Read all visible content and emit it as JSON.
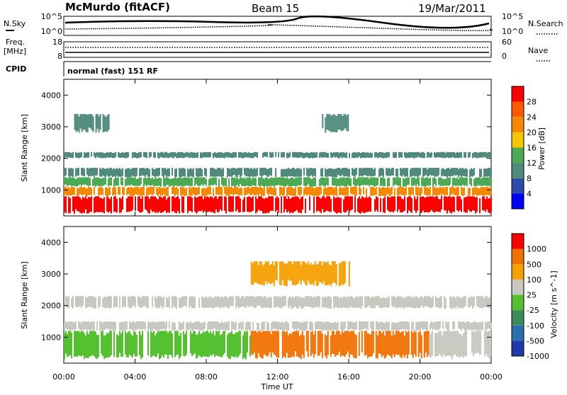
{
  "header": {
    "station": "McMurdo (fitACF)",
    "beam": "Beam 15",
    "date": "19/Mar/2011"
  },
  "aux_panels": {
    "nsky_label": "N.Sky",
    "nsearch_label": "N.Search",
    "freq_label_line1": "Freq.",
    "freq_label_line2": "[MHz]",
    "nave_label": "Nave",
    "cpid_label": "CPID",
    "cpid_value": "normal (fast) 151 RF",
    "left_ticks_noise": [
      "10^5",
      "10^0"
    ],
    "right_ticks_noise": [
      "10^5",
      "10^0"
    ],
    "left_ticks_freq": [
      "18",
      "8"
    ],
    "right_ticks_nave": [
      "60",
      "0"
    ]
  },
  "colors": {
    "power": [
      "#0000ff",
      "#2a4ea8",
      "#4f8a7a",
      "#4caa55",
      "#f5c500",
      "#f58a00",
      "#ff5a00",
      "#ff0000"
    ],
    "velocity": [
      "#1f3aa8",
      "#2c6db0",
      "#3a8a5a",
      "#55c030",
      "#c8c8c0",
      "#f5a000",
      "#f07000",
      "#ff0000"
    ],
    "frame": "#000000"
  },
  "chart_data": [
    {
      "type": "heatmap",
      "name": "power",
      "x_values_ut": [
        "00:00",
        "04:00",
        "08:00",
        "12:00",
        "16:00",
        "20:00",
        "00:00"
      ],
      "ylabel": "Slant Range [km]",
      "yticks": [
        1000,
        2000,
        3000,
        4000
      ],
      "ylim": [
        180,
        4500
      ],
      "colorbar_label": "Power [dB]",
      "colorbar_ticks": [
        4,
        8,
        12,
        16,
        20,
        24,
        28
      ],
      "colorbar_range": [
        0,
        32
      ],
      "rows": [
        {
          "range_km": [
            250,
            800
          ],
          "level": 7,
          "span_h": [
            0,
            24
          ]
        },
        {
          "range_km": [
            800,
            1100
          ],
          "level": 5,
          "span_h": [
            0,
            24
          ]
        },
        {
          "range_km": [
            1100,
            1400
          ],
          "level": 3,
          "span_h": [
            0,
            24
          ]
        },
        {
          "range_km": [
            1400,
            1700
          ],
          "level": 2,
          "span_h": [
            0,
            24
          ]
        },
        {
          "range_km": [
            2000,
            2200
          ],
          "level": 2,
          "span_h": [
            0,
            24
          ]
        },
        {
          "range_km": [
            2800,
            3400
          ],
          "level": 2,
          "span_h": [
            0.5,
            2.5
          ]
        },
        {
          "range_km": [
            2800,
            3400
          ],
          "level": 2,
          "span_h": [
            14.5,
            16.0
          ]
        }
      ]
    },
    {
      "type": "heatmap",
      "name": "velocity",
      "x_values_ut": [
        "00:00",
        "04:00",
        "08:00",
        "12:00",
        "16:00",
        "20:00",
        "00:00"
      ],
      "ylabel": "Slant Range [km]",
      "yticks": [
        1000,
        2000,
        3000,
        4000
      ],
      "ylim": [
        180,
        4500
      ],
      "colorbar_label": "Velocity [m s^-1]",
      "colorbar_ticks": [
        "1000",
        "500",
        "100",
        "25",
        "-25",
        "-100",
        "-500",
        "-1000"
      ],
      "rows": [
        {
          "range_km": [
            300,
            1200
          ],
          "level": 3,
          "span_h": [
            0,
            10.5
          ]
        },
        {
          "range_km": [
            300,
            1200
          ],
          "level": 6,
          "span_h": [
            10.5,
            20.5
          ]
        },
        {
          "range_km": [
            300,
            1200
          ],
          "level": 4,
          "span_h": [
            20.5,
            24
          ]
        },
        {
          "range_km": [
            1200,
            1500
          ],
          "level": 4,
          "span_h": [
            0,
            24
          ]
        },
        {
          "range_km": [
            1900,
            2300
          ],
          "level": 4,
          "span_h": [
            0,
            24
          ]
        },
        {
          "range_km": [
            2600,
            3400
          ],
          "level": 5,
          "span_h": [
            10.5,
            16.0
          ]
        }
      ]
    }
  ],
  "xaxis": {
    "ticks": [
      "00:00",
      "04:00",
      "08:00",
      "12:00",
      "16:00",
      "20:00",
      "00:00"
    ],
    "label": "Time UT"
  }
}
